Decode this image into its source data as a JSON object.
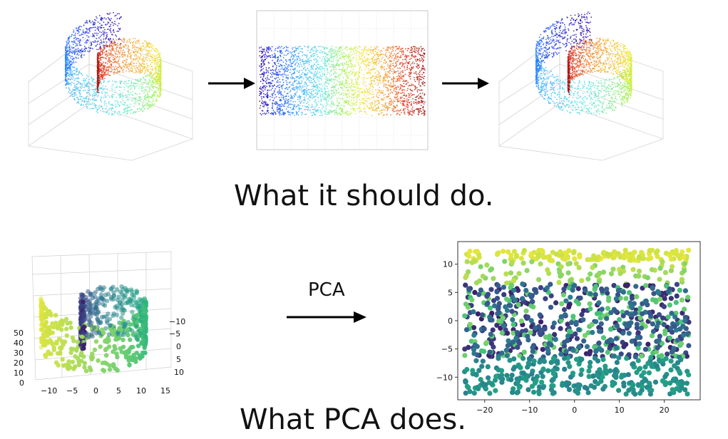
{
  "caption_top": "What it should do.",
  "caption_bottom": "What PCA does.",
  "arrow_label": "PCA",
  "colors": {
    "spectral": [
      "#2b00a8",
      "#1f5bff",
      "#39b6ff",
      "#5fe3e6",
      "#9ef25a",
      "#f4e93a",
      "#f6a12b",
      "#e43b1f",
      "#9b0b0b"
    ],
    "viridis": [
      "#3b1f66",
      "#3b4a8a",
      "#2a7f8e",
      "#22a384",
      "#3fbf78",
      "#7fd36b",
      "#c6e04a",
      "#e6e73b"
    ]
  },
  "chart_data": [
    {
      "id": "swiss-roll-3d",
      "type": "scatter",
      "title": "",
      "xlabel": "",
      "ylabel": "",
      "z_ticks": [
        "0",
        "10",
        "20",
        "30",
        "40",
        "50"
      ],
      "x_ticks": [
        "−10",
        "−5",
        "0",
        "5",
        "10",
        "15"
      ],
      "y_ticks": [
        "−10",
        "−5",
        "0",
        "5",
        "10"
      ],
      "grid": true
    },
    {
      "id": "pca-projection",
      "type": "scatter",
      "title": "",
      "xlabel": "",
      "ylabel": "",
      "x_ticks": [
        "−20",
        "−10",
        "0",
        "10",
        "20"
      ],
      "y_ticks": [
        "10",
        "5",
        "0",
        "−5",
        "−10"
      ],
      "xlim": [
        -26,
        28
      ],
      "ylim": [
        -14,
        14
      ],
      "grid": false
    }
  ]
}
